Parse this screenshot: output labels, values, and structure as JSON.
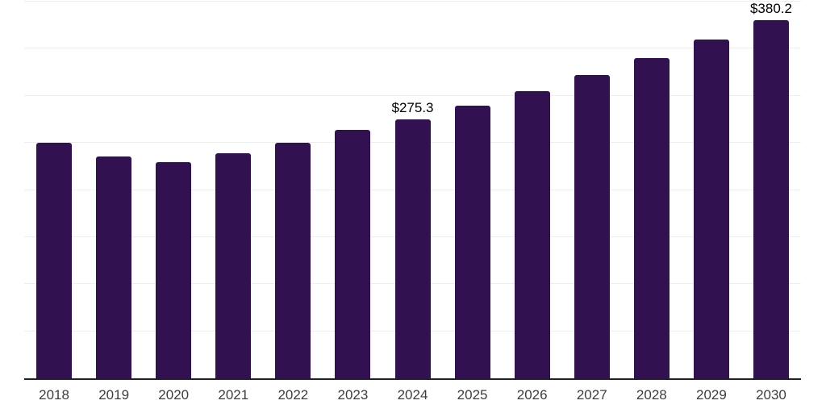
{
  "chart_data": {
    "type": "bar",
    "title": "",
    "xlabel": "",
    "ylabel": "",
    "categories": [
      "2018",
      "2019",
      "2020",
      "2021",
      "2022",
      "2023",
      "2024",
      "2025",
      "2026",
      "2027",
      "2028",
      "2029",
      "2030"
    ],
    "values": [
      250.5,
      235.7,
      229.2,
      239.1,
      250.2,
      263.9,
      275.3,
      289.6,
      305.0,
      322.1,
      340.1,
      359.8,
      380.2
    ],
    "data_labels": {
      "2024": "$275.3",
      "2030": "$380.2"
    },
    "ylim": [
      0,
      400
    ],
    "grid_step": 50,
    "grid": "horizontal",
    "legend": false,
    "y_axis_labels_visible": false,
    "currency_prefix": "$"
  },
  "colors": {
    "bar": "#321150",
    "grid": "#eeeeee",
    "axis": "#222222",
    "tick_label": "#3d3d3d",
    "value_label": "#000000",
    "background": "#ffffff"
  }
}
